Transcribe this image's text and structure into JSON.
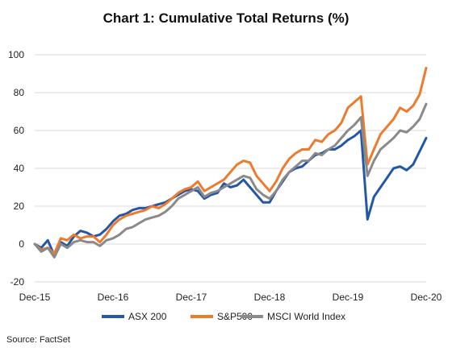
{
  "chart_data": {
    "type": "line",
    "title": "Chart 1: Cumulative Total Returns (%)",
    "source": "Source: FactSet",
    "xlabel": "",
    "ylabel": "",
    "ylim": [
      -20,
      100
    ],
    "yticks": [
      "-20",
      "0",
      "20",
      "40",
      "60",
      "80",
      "100"
    ],
    "xticks": [
      "Dec-15",
      "Dec-16",
      "Dec-17",
      "Dec-18",
      "Dec-19",
      "Dec-20"
    ],
    "grid": "horizontal",
    "legend": "bottom",
    "x": [
      "Dec-15",
      "Jan-16",
      "Feb-16",
      "Mar-16",
      "Apr-16",
      "May-16",
      "Jun-16",
      "Jul-16",
      "Aug-16",
      "Sep-16",
      "Oct-16",
      "Nov-16",
      "Dec-16",
      "Jan-17",
      "Feb-17",
      "Mar-17",
      "Apr-17",
      "May-17",
      "Jun-17",
      "Jul-17",
      "Aug-17",
      "Sep-17",
      "Oct-17",
      "Nov-17",
      "Dec-17",
      "Jan-18",
      "Feb-18",
      "Mar-18",
      "Apr-18",
      "May-18",
      "Jun-18",
      "Jul-18",
      "Aug-18",
      "Sep-18",
      "Oct-18",
      "Nov-18",
      "Dec-18",
      "Jan-19",
      "Feb-19",
      "Mar-19",
      "Apr-19",
      "May-19",
      "Jun-19",
      "Jul-19",
      "Aug-19",
      "Sep-19",
      "Oct-19",
      "Nov-19",
      "Dec-19",
      "Jan-20",
      "Feb-20",
      "Mar-20",
      "Apr-20",
      "May-20",
      "Jun-20",
      "Jul-20",
      "Aug-20",
      "Sep-20",
      "Oct-20",
      "Nov-20",
      "Dec-20"
    ],
    "series": [
      {
        "name": "ASX 200",
        "color": "#2557a7",
        "values": [
          0,
          -2,
          2,
          -6,
          1,
          -1,
          4,
          7,
          6,
          4,
          5,
          8,
          12,
          15,
          16,
          18,
          19,
          19,
          20,
          21,
          22,
          24,
          26,
          28,
          29,
          28,
          24,
          26,
          27,
          32,
          30,
          31,
          34,
          30,
          26,
          22,
          22,
          28,
          33,
          38,
          40,
          41,
          44,
          47,
          48,
          50,
          50,
          52,
          55,
          57,
          60,
          13,
          25,
          30,
          35,
          40,
          41,
          39,
          42,
          49,
          56
        ]
      },
      {
        "name": "S&P500",
        "color": "#ee7a2e",
        "values": [
          0,
          -3,
          -2,
          -5,
          3,
          2,
          5,
          3,
          4,
          4,
          1,
          5,
          10,
          13,
          15,
          16,
          17,
          18,
          20,
          19,
          21,
          24,
          27,
          29,
          30,
          33,
          28,
          30,
          32,
          34,
          38,
          42,
          44,
          43,
          36,
          32,
          28,
          33,
          40,
          45,
          48,
          50,
          50,
          55,
          54,
          58,
          60,
          64,
          72,
          75,
          78,
          42,
          50,
          58,
          62,
          66,
          72,
          70,
          73,
          79,
          93
        ]
      },
      {
        "name": "MSCI World Index",
        "color": "#8a8a8a",
        "values": [
          0,
          -4,
          -2,
          -7,
          0,
          -2,
          1,
          2,
          1,
          1,
          -1,
          2,
          3,
          5,
          8,
          9,
          11,
          13,
          14,
          15,
          17,
          20,
          24,
          26,
          28,
          30,
          25,
          27,
          28,
          30,
          32,
          34,
          36,
          35,
          29,
          26,
          24,
          28,
          34,
          38,
          41,
          44,
          44,
          48,
          47,
          50,
          52,
          56,
          60,
          63,
          67,
          36,
          44,
          50,
          53,
          56,
          60,
          59,
          62,
          66,
          74
        ]
      }
    ]
  }
}
